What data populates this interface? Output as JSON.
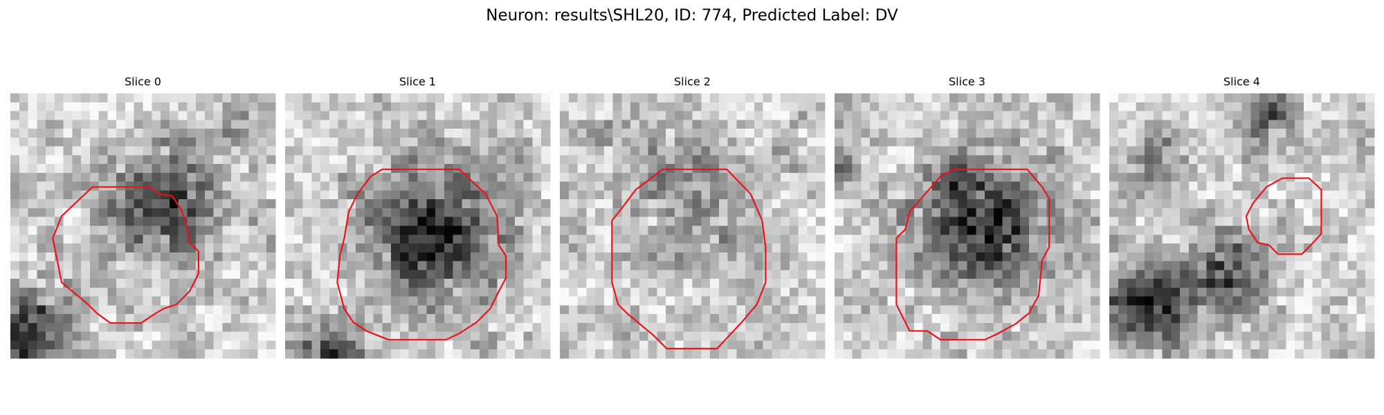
{
  "title": "Neuron: results\\SHL20, ID: 774, Predicted Label: DV",
  "panels": [
    {
      "title": "Slice 0"
    },
    {
      "title": "Slice 1"
    },
    {
      "title": "Slice 2"
    },
    {
      "title": "Slice 3"
    },
    {
      "title": "Slice 4"
    }
  ]
}
